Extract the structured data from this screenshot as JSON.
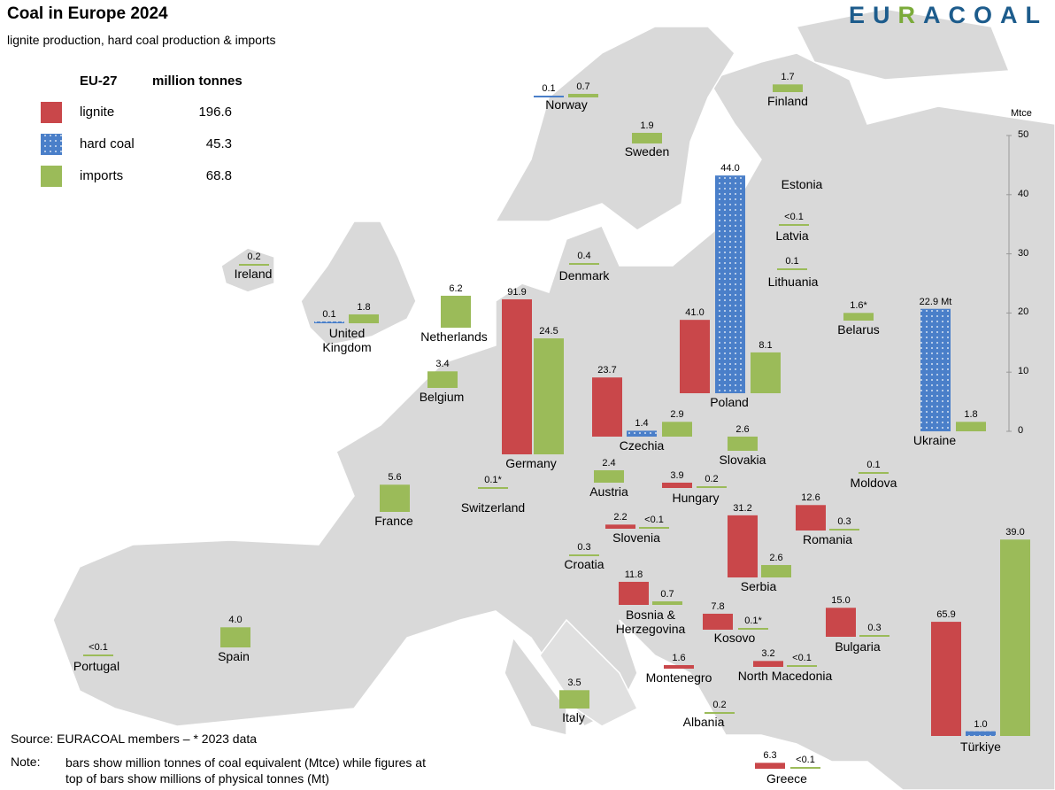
{
  "title": "Coal in Europe 2024",
  "subtitle": "lignite production, hard coal production & imports",
  "logo": [
    "EU",
    "R",
    "ACOAL"
  ],
  "legend": {
    "region": "EU-27",
    "unit": "million tonnes",
    "items": [
      {
        "name": "lignite",
        "value": 196.6,
        "color": "#c9474a"
      },
      {
        "name": "hard coal",
        "value": 45.3,
        "color": "#4a7fc9"
      },
      {
        "name": "imports",
        "value": 68.8,
        "color": "#9bbb59"
      }
    ]
  },
  "axis": {
    "label": "Mtce",
    "ylim": [
      0,
      50
    ],
    "yticks": [
      0,
      10,
      20,
      30,
      40,
      50
    ]
  },
  "countries": [
    {
      "name": "Norway",
      "hard_coal": {
        "mt": 0.1,
        "mtce": 0.1
      },
      "imports": {
        "mt": 0.7,
        "mtce": 0.6
      }
    },
    {
      "name": "Finland",
      "imports": {
        "mt": 1.7,
        "mtce": 1.3
      }
    },
    {
      "name": "Sweden",
      "imports": {
        "mt": 1.9,
        "mtce": 1.8
      }
    },
    {
      "name": "Estonia"
    },
    {
      "name": "Latvia",
      "imports": {
        "mt_label": "<0.1",
        "mtce": 0.05
      }
    },
    {
      "name": "Lithuania",
      "imports": {
        "mt": 0.1,
        "mtce": 0.1
      }
    },
    {
      "name": "Belarus",
      "imports": {
        "mt": 1.6,
        "mt_label": "1.6*",
        "mtce": 1.3
      }
    },
    {
      "name": "Ukraine",
      "hard_coal": {
        "mt": 22.9,
        "mt_label": "22.9 Mt",
        "mtce": 20.7
      },
      "imports": {
        "mt": 1.8,
        "mtce": 1.6
      }
    },
    {
      "name": "Poland",
      "lignite": {
        "mt": 41.0,
        "mt_label": "41.0",
        "mtce": 12.4
      },
      "hard_coal": {
        "mt": 44.0,
        "mt_label": "44.0",
        "mtce": 36.8
      },
      "imports": {
        "mt": 8.1,
        "mtce": 6.9
      }
    },
    {
      "name": "Denmark",
      "imports": {
        "mt": 0.4,
        "mtce": 0.3
      }
    },
    {
      "name": "Ireland",
      "imports": {
        "mt": 0.2,
        "mtce": 0.2
      }
    },
    {
      "name": "United Kingdom",
      "hard_coal": {
        "mt": 0.1,
        "mtce": 0.1
      },
      "imports": {
        "mt": 1.8,
        "mtce": 1.5
      }
    },
    {
      "name": "Netherlands",
      "imports": {
        "mt": 6.2,
        "mtce": 5.4
      }
    },
    {
      "name": "Belgium",
      "imports": {
        "mt": 3.4,
        "mtce": 2.8
      }
    },
    {
      "name": "Germany",
      "lignite": {
        "mt": 91.9,
        "mtce": 26.2
      },
      "imports": {
        "mt": 24.5,
        "mtce": 19.6
      }
    },
    {
      "name": "France",
      "imports": {
        "mt": 5.6,
        "mtce": 4.6
      }
    },
    {
      "name": "Czechia",
      "lignite": {
        "mt": 23.7,
        "mtce": 10.0
      },
      "hard_coal": {
        "mt": 1.4,
        "mtce": 1.0
      },
      "imports": {
        "mt": 2.9,
        "mtce": 2.5
      }
    },
    {
      "name": "Austria",
      "imports": {
        "mt": 2.4,
        "mtce": 2.1
      }
    },
    {
      "name": "Slovakia",
      "imports": {
        "mt": 2.6,
        "mtce": 2.4
      }
    },
    {
      "name": "Switzerland",
      "imports": {
        "mt": 0.1,
        "mt_label": "0.1*",
        "mtce": 0.1
      }
    },
    {
      "name": "Hungary",
      "lignite": {
        "mt": 3.9,
        "mtce": 0.9
      },
      "imports": {
        "mt": 0.2,
        "mtce": 0.2
      }
    },
    {
      "name": "Moldova",
      "imports": {
        "mt": 0.1,
        "mtce": 0.1
      }
    },
    {
      "name": "Slovenia",
      "lignite": {
        "mt": 2.2,
        "mtce": 0.7
      },
      "imports": {
        "mt_label": "<0.1",
        "mtce": 0.05
      }
    },
    {
      "name": "Romania",
      "lignite": {
        "mt": 12.6,
        "mtce": 4.3
      },
      "imports": {
        "mt": 0.3,
        "mtce": 0.2
      }
    },
    {
      "name": "Croatia",
      "imports": {
        "mt": 0.3,
        "mtce": 0.3
      }
    },
    {
      "name": "Serbia",
      "lignite": {
        "mt": 31.2,
        "mtce": 10.5
      },
      "imports": {
        "mt": 2.6,
        "mtce": 2.1
      }
    },
    {
      "name": "Bosnia & Herzegovina",
      "lignite": {
        "mt": 11.8,
        "mtce": 3.9
      },
      "imports": {
        "mt": 0.7,
        "mtce": 0.6
      }
    },
    {
      "name": "Kosovo",
      "lignite": {
        "mt": 7.8,
        "mtce": 2.7
      },
      "imports": {
        "mt": 0.1,
        "mt_label": "0.1*",
        "mtce": 0.1
      }
    },
    {
      "name": "Bulgaria",
      "lignite": {
        "mt": 15.0,
        "mt_label": "15.0",
        "mtce": 4.9
      },
      "imports": {
        "mt": 0.3,
        "mtce": 0.2
      }
    },
    {
      "name": "Spain",
      "imports": {
        "mt": 4.0,
        "mt_label": "4.0",
        "mtce": 3.4
      }
    },
    {
      "name": "Portugal",
      "imports": {
        "mt_label": "<0.1",
        "mtce": 0.05
      }
    },
    {
      "name": "Montenegro",
      "lignite": {
        "mt": 1.6,
        "mtce": 0.6
      }
    },
    {
      "name": "North Macedonia",
      "lignite": {
        "mt": 3.2,
        "mtce": 1.0
      },
      "imports": {
        "mt_label": "<0.1",
        "mtce": 0.05
      }
    },
    {
      "name": "Italy",
      "imports": {
        "mt": 3.5,
        "mtce": 3.1
      }
    },
    {
      "name": "Albania",
      "imports": {
        "mt": 0.2,
        "mtce": 0.2
      }
    },
    {
      "name": "Türkiye",
      "lignite": {
        "mt": 65.9,
        "mtce": 19.3
      },
      "hard_coal": {
        "mt": 1.0,
        "mt_label": "1.0",
        "mtce": 0.8
      },
      "imports": {
        "mt": 39.0,
        "mt_label": "39.0",
        "mtce": 33.2
      }
    },
    {
      "name": "Greece",
      "lignite": {
        "mt": 6.3,
        "mtce": 1.0
      },
      "imports": {
        "mt_label": "<0.1",
        "mtce": 0.05
      }
    }
  ],
  "source": "Source: EURACOAL members  –  * 2023 data",
  "note": {
    "label": "Note:",
    "text": "bars show million tonnes of coal equivalent (Mtce) while figures at top of bars show millions of physical tonnes (Mt)"
  }
}
